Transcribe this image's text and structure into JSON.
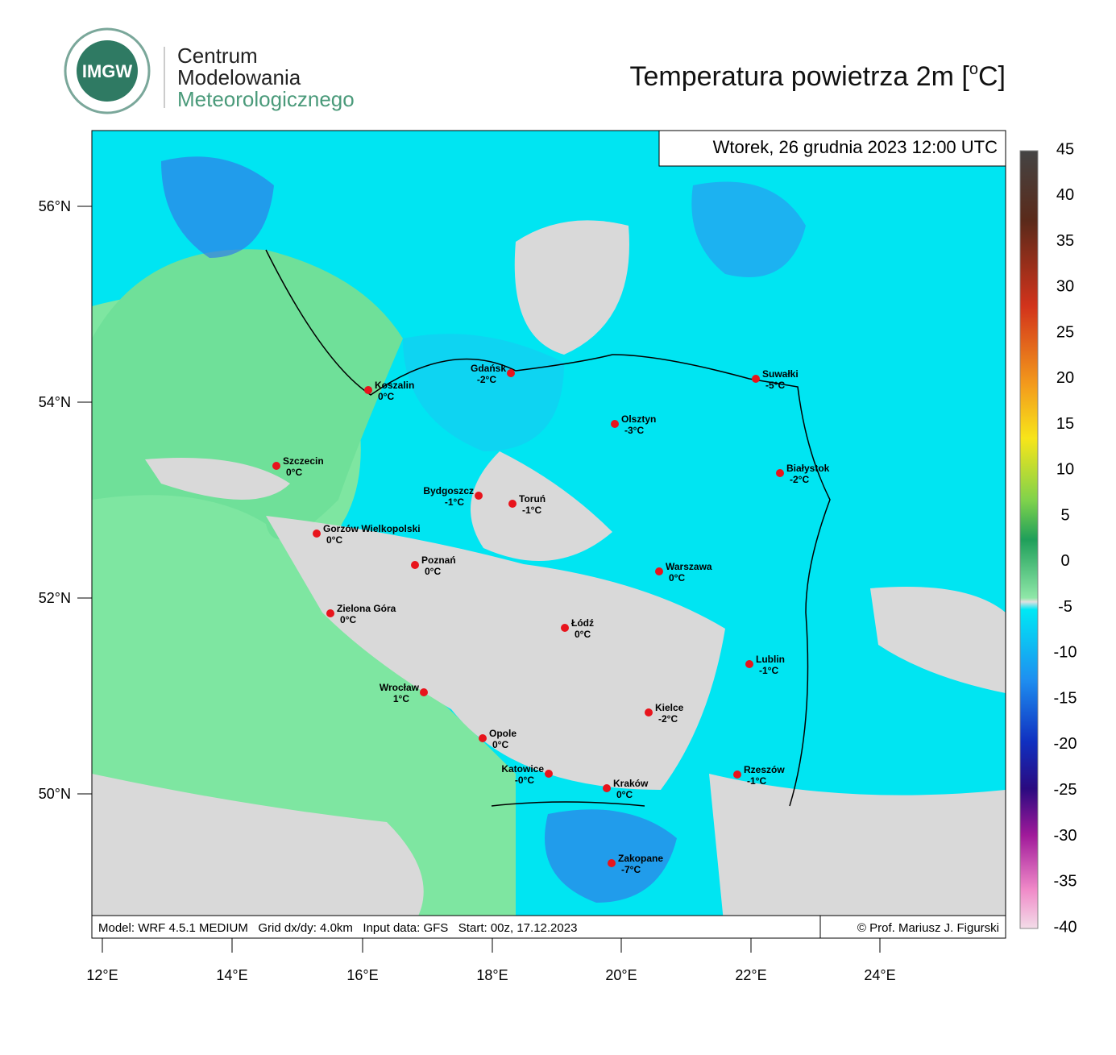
{
  "header": {
    "logo_badge": "IMGW",
    "logo_lines": [
      "Centrum",
      "Modelowania",
      "Meteorologicznego"
    ],
    "title_prefix": "Temperatura powietrza 2m [",
    "title_degree": "o",
    "title_suffix": "C]"
  },
  "map": {
    "timestamp": "Wtorek, 26 grudnia 2023 12:00 UTC",
    "footer_left": "Model: WRF 4.5.1 MEDIUM   Grid dx/dy: 4.0km   Input data: GFS   Start: 00z, 17.12.2023",
    "footer_right": "© Prof. Mariusz J. Figurski",
    "lat_labels": [
      "56°N",
      "54°N",
      "52°N",
      "50°N"
    ],
    "lon_labels": [
      "12°E",
      "14°E",
      "16°E",
      "18°E",
      "20°E",
      "22°E",
      "24°E"
    ],
    "cities": [
      {
        "name": "Koszalin",
        "temp": "0°C"
      },
      {
        "name": "Gdańsk",
        "temp": "-2°C"
      },
      {
        "name": "Suwałki",
        "temp": "-5°C"
      },
      {
        "name": "Olsztyn",
        "temp": "-3°C"
      },
      {
        "name": "Szczecin",
        "temp": "0°C"
      },
      {
        "name": "Białystok",
        "temp": "-2°C"
      },
      {
        "name": "Bydgoszcz",
        "temp": "-1°C"
      },
      {
        "name": "Toruń",
        "temp": "-1°C"
      },
      {
        "name": "Gorzów Wielkopolski",
        "temp": "0°C"
      },
      {
        "name": "Poznań",
        "temp": "0°C"
      },
      {
        "name": "Warszawa",
        "temp": "0°C"
      },
      {
        "name": "Zielona Góra",
        "temp": "0°C"
      },
      {
        "name": "Łódź",
        "temp": "0°C"
      },
      {
        "name": "Lublin",
        "temp": "-1°C"
      },
      {
        "name": "Wrocław",
        "temp": "1°C"
      },
      {
        "name": "Kielce",
        "temp": "-2°C"
      },
      {
        "name": "Opole",
        "temp": "0°C"
      },
      {
        "name": "Katowice",
        "temp": "-0°C"
      },
      {
        "name": "Rzeszów",
        "temp": "-1°C"
      },
      {
        "name": "Kraków",
        "temp": "0°C"
      },
      {
        "name": "Zakopane",
        "temp": "-7°C"
      }
    ]
  },
  "colorbar": {
    "labels": [
      45,
      40,
      35,
      30,
      25,
      20,
      15,
      10,
      5,
      0,
      -5,
      -10,
      -15,
      -20,
      -25,
      -30,
      -35,
      -40
    ]
  }
}
